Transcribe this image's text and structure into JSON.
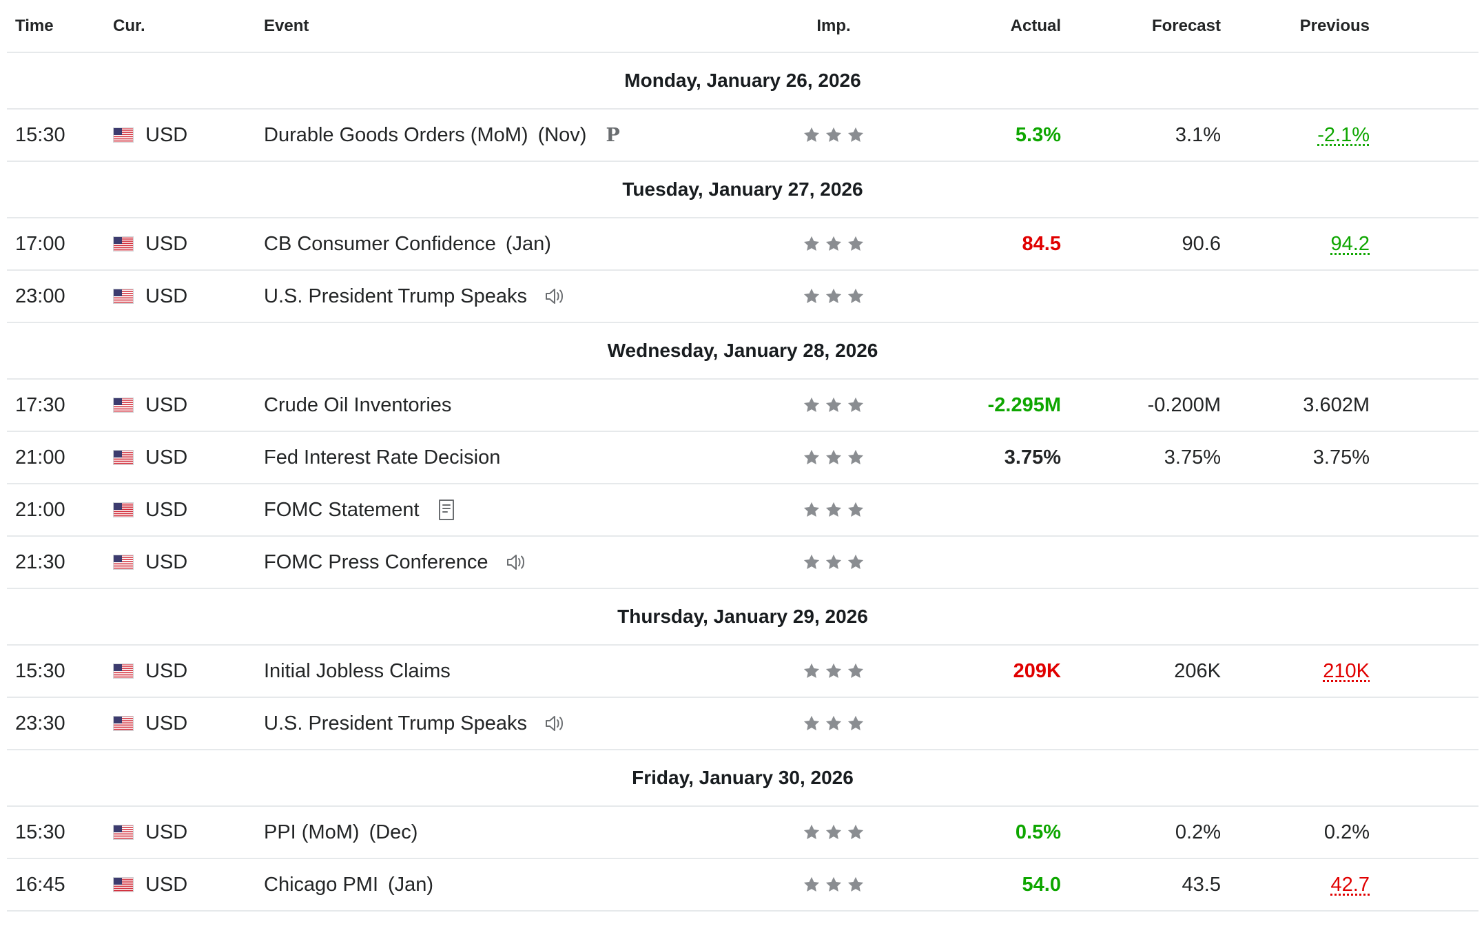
{
  "header": {
    "time": "Time",
    "currency": "Cur.",
    "event": "Event",
    "importance": "Imp.",
    "actual": "Actual",
    "forecast": "Forecast",
    "previous": "Previous"
  },
  "colors": {
    "positive": "#0ea600",
    "negative": "#e00000",
    "neutral": "#232526",
    "star": "#8a8d91",
    "divider": "#e6e9eb"
  },
  "days": [
    {
      "label": "Monday, January 26, 2026",
      "events": [
        {
          "time": "15:30",
          "currency": "USD",
          "flag": "us-flag-icon",
          "name": "Durable Goods Orders (MoM)",
          "period": "(Nov)",
          "icon": "preliminary-icon",
          "icon_text": "P",
          "importance": 3,
          "actual": "5.3%",
          "actual_status": "positive",
          "forecast": "3.1%",
          "previous": "-2.1%",
          "previous_status": "positive-revised"
        }
      ]
    },
    {
      "label": "Tuesday, January 27, 2026",
      "events": [
        {
          "time": "17:00",
          "currency": "USD",
          "flag": "us-flag-icon",
          "name": "CB Consumer Confidence",
          "period": "(Jan)",
          "importance": 3,
          "actual": "84.5",
          "actual_status": "negative",
          "forecast": "90.6",
          "previous": "94.2",
          "previous_status": "positive-revised"
        },
        {
          "time": "23:00",
          "currency": "USD",
          "flag": "us-flag-icon",
          "name": "U.S. President Trump Speaks",
          "period": "",
          "icon": "speaker-icon",
          "importance": 3,
          "actual": "",
          "forecast": "",
          "previous": ""
        }
      ]
    },
    {
      "label": "Wednesday, January 28, 2026",
      "events": [
        {
          "time": "17:30",
          "currency": "USD",
          "flag": "us-flag-icon",
          "name": "Crude Oil Inventories",
          "period": "",
          "importance": 3,
          "actual": "-2.295M",
          "actual_status": "positive",
          "forecast": "-0.200M",
          "previous": "3.602M",
          "previous_status": "neutral"
        },
        {
          "time": "21:00",
          "currency": "USD",
          "flag": "us-flag-icon",
          "name": "Fed Interest Rate Decision",
          "period": "",
          "importance": 3,
          "actual": "3.75%",
          "actual_status": "neutral",
          "forecast": "3.75%",
          "previous": "3.75%",
          "previous_status": "neutral"
        },
        {
          "time": "21:00",
          "currency": "USD",
          "flag": "us-flag-icon",
          "name": "FOMC Statement",
          "period": "",
          "icon": "document-icon",
          "importance": 3,
          "actual": "",
          "forecast": "",
          "previous": ""
        },
        {
          "time": "21:30",
          "currency": "USD",
          "flag": "us-flag-icon",
          "name": "FOMC Press Conference",
          "period": "",
          "icon": "speaker-icon",
          "importance": 3,
          "actual": "",
          "forecast": "",
          "previous": ""
        }
      ]
    },
    {
      "label": "Thursday, January 29, 2026",
      "events": [
        {
          "time": "15:30",
          "currency": "USD",
          "flag": "us-flag-icon",
          "name": "Initial Jobless Claims",
          "period": "",
          "importance": 3,
          "actual": "209K",
          "actual_status": "negative",
          "forecast": "206K",
          "previous": "210K",
          "previous_status": "negative-revised"
        },
        {
          "time": "23:30",
          "currency": "USD",
          "flag": "us-flag-icon",
          "name": "U.S. President Trump Speaks",
          "period": "",
          "icon": "speaker-icon",
          "importance": 3,
          "actual": "",
          "forecast": "",
          "previous": ""
        }
      ]
    },
    {
      "label": "Friday, January 30, 2026",
      "events": [
        {
          "time": "15:30",
          "currency": "USD",
          "flag": "us-flag-icon",
          "name": "PPI (MoM)",
          "period": "(Dec)",
          "importance": 3,
          "actual": "0.5%",
          "actual_status": "positive",
          "forecast": "0.2%",
          "previous": "0.2%",
          "previous_status": "neutral"
        },
        {
          "time": "16:45",
          "currency": "USD",
          "flag": "us-flag-icon",
          "name": "Chicago PMI",
          "period": "(Jan)",
          "importance": 3,
          "actual": "54.0",
          "actual_status": "positive",
          "forecast": "43.5",
          "previous": "42.7",
          "previous_status": "negative-revised"
        }
      ]
    }
  ]
}
